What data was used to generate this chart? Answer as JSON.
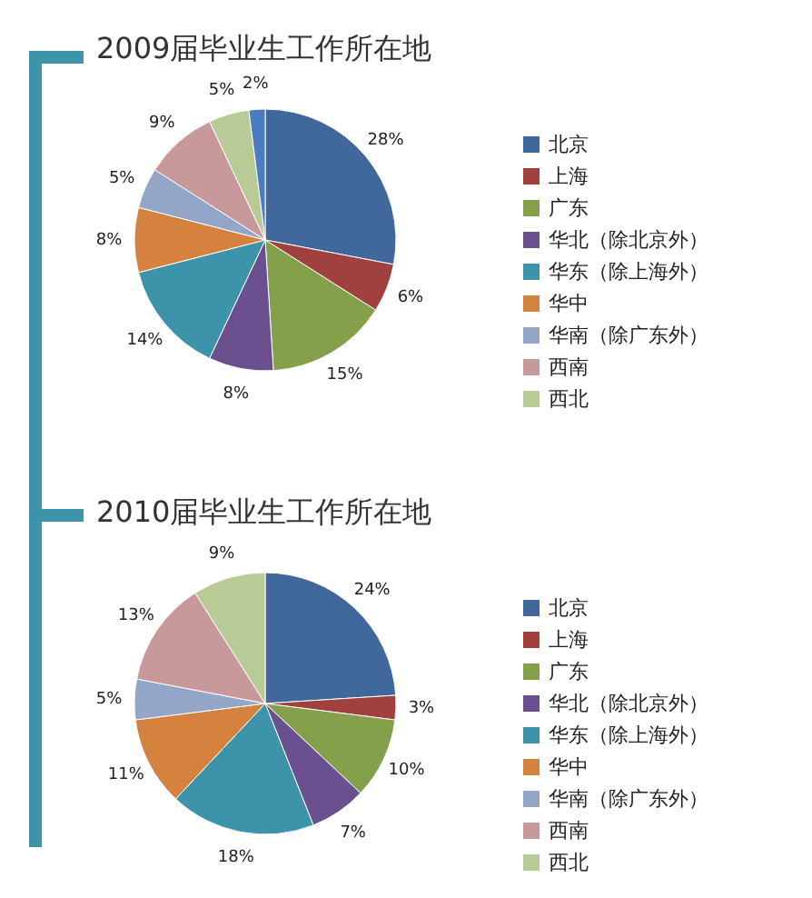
{
  "chart_data": [
    {
      "type": "pie",
      "title": "2009届毕业生工作所在地",
      "legend": "right",
      "categories": [
        "北京",
        "上海",
        "广东",
        "华北（除北京外）",
        "华东（除上海外）",
        "华中",
        "华南（除广东外）",
        "西南",
        "西北",
        null
      ],
      "values": [
        28,
        6,
        15,
        8,
        14,
        8,
        5,
        9,
        5,
        2
      ],
      "value_labels": [
        "28%",
        "6%",
        "15%",
        "8%",
        "14%",
        "8%",
        "5%",
        "9%",
        "5%",
        "2%"
      ],
      "colors": [
        "#41689c",
        "#a0403f",
        "#85a04a",
        "#6b5090",
        "#3d93a9",
        "#d5823f",
        "#93a6c8",
        "#c7999b",
        "#b8ca95",
        "#4a7cc0"
      ]
    },
    {
      "type": "pie",
      "title": "2010届毕业生工作所在地",
      "legend": "right",
      "categories": [
        "北京",
        "上海",
        "广东",
        "华北（除北京外）",
        "华东（除上海外）",
        "华中",
        "华南（除广东外）",
        "西南",
        "西北"
      ],
      "values": [
        24,
        3,
        10,
        7,
        18,
        11,
        5,
        13,
        9
      ],
      "value_labels": [
        "24%",
        "3%",
        "10%",
        "7%",
        "18%",
        "11%",
        "5%",
        "13%",
        "9%"
      ],
      "colors": [
        "#41689c",
        "#a0403f",
        "#85a04a",
        "#6b5090",
        "#3d93a9",
        "#d5823f",
        "#93a6c8",
        "#c7999b",
        "#b8ca95"
      ]
    }
  ]
}
